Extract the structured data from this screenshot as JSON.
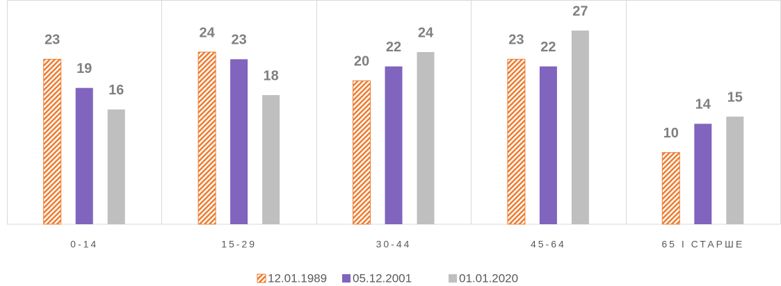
{
  "chart_data": {
    "type": "bar",
    "categories": [
      "0-14",
      "15-29",
      "30-44",
      "45-64",
      "65 І СТАРШЕ"
    ],
    "series": [
      {
        "name": "12.01.1989",
        "color": "#ed7d31",
        "pattern": "hatch",
        "values": [
          23,
          24,
          20,
          23,
          10
        ]
      },
      {
        "name": "05.12.2001",
        "color": "#8064bd",
        "values": [
          19,
          23,
          22,
          22,
          14
        ]
      },
      {
        "name": "01.01.2020",
        "color": "#bfbfbf",
        "values": [
          16,
          18,
          24,
          27,
          15
        ]
      }
    ],
    "ylim": [
      0,
      30
    ]
  }
}
